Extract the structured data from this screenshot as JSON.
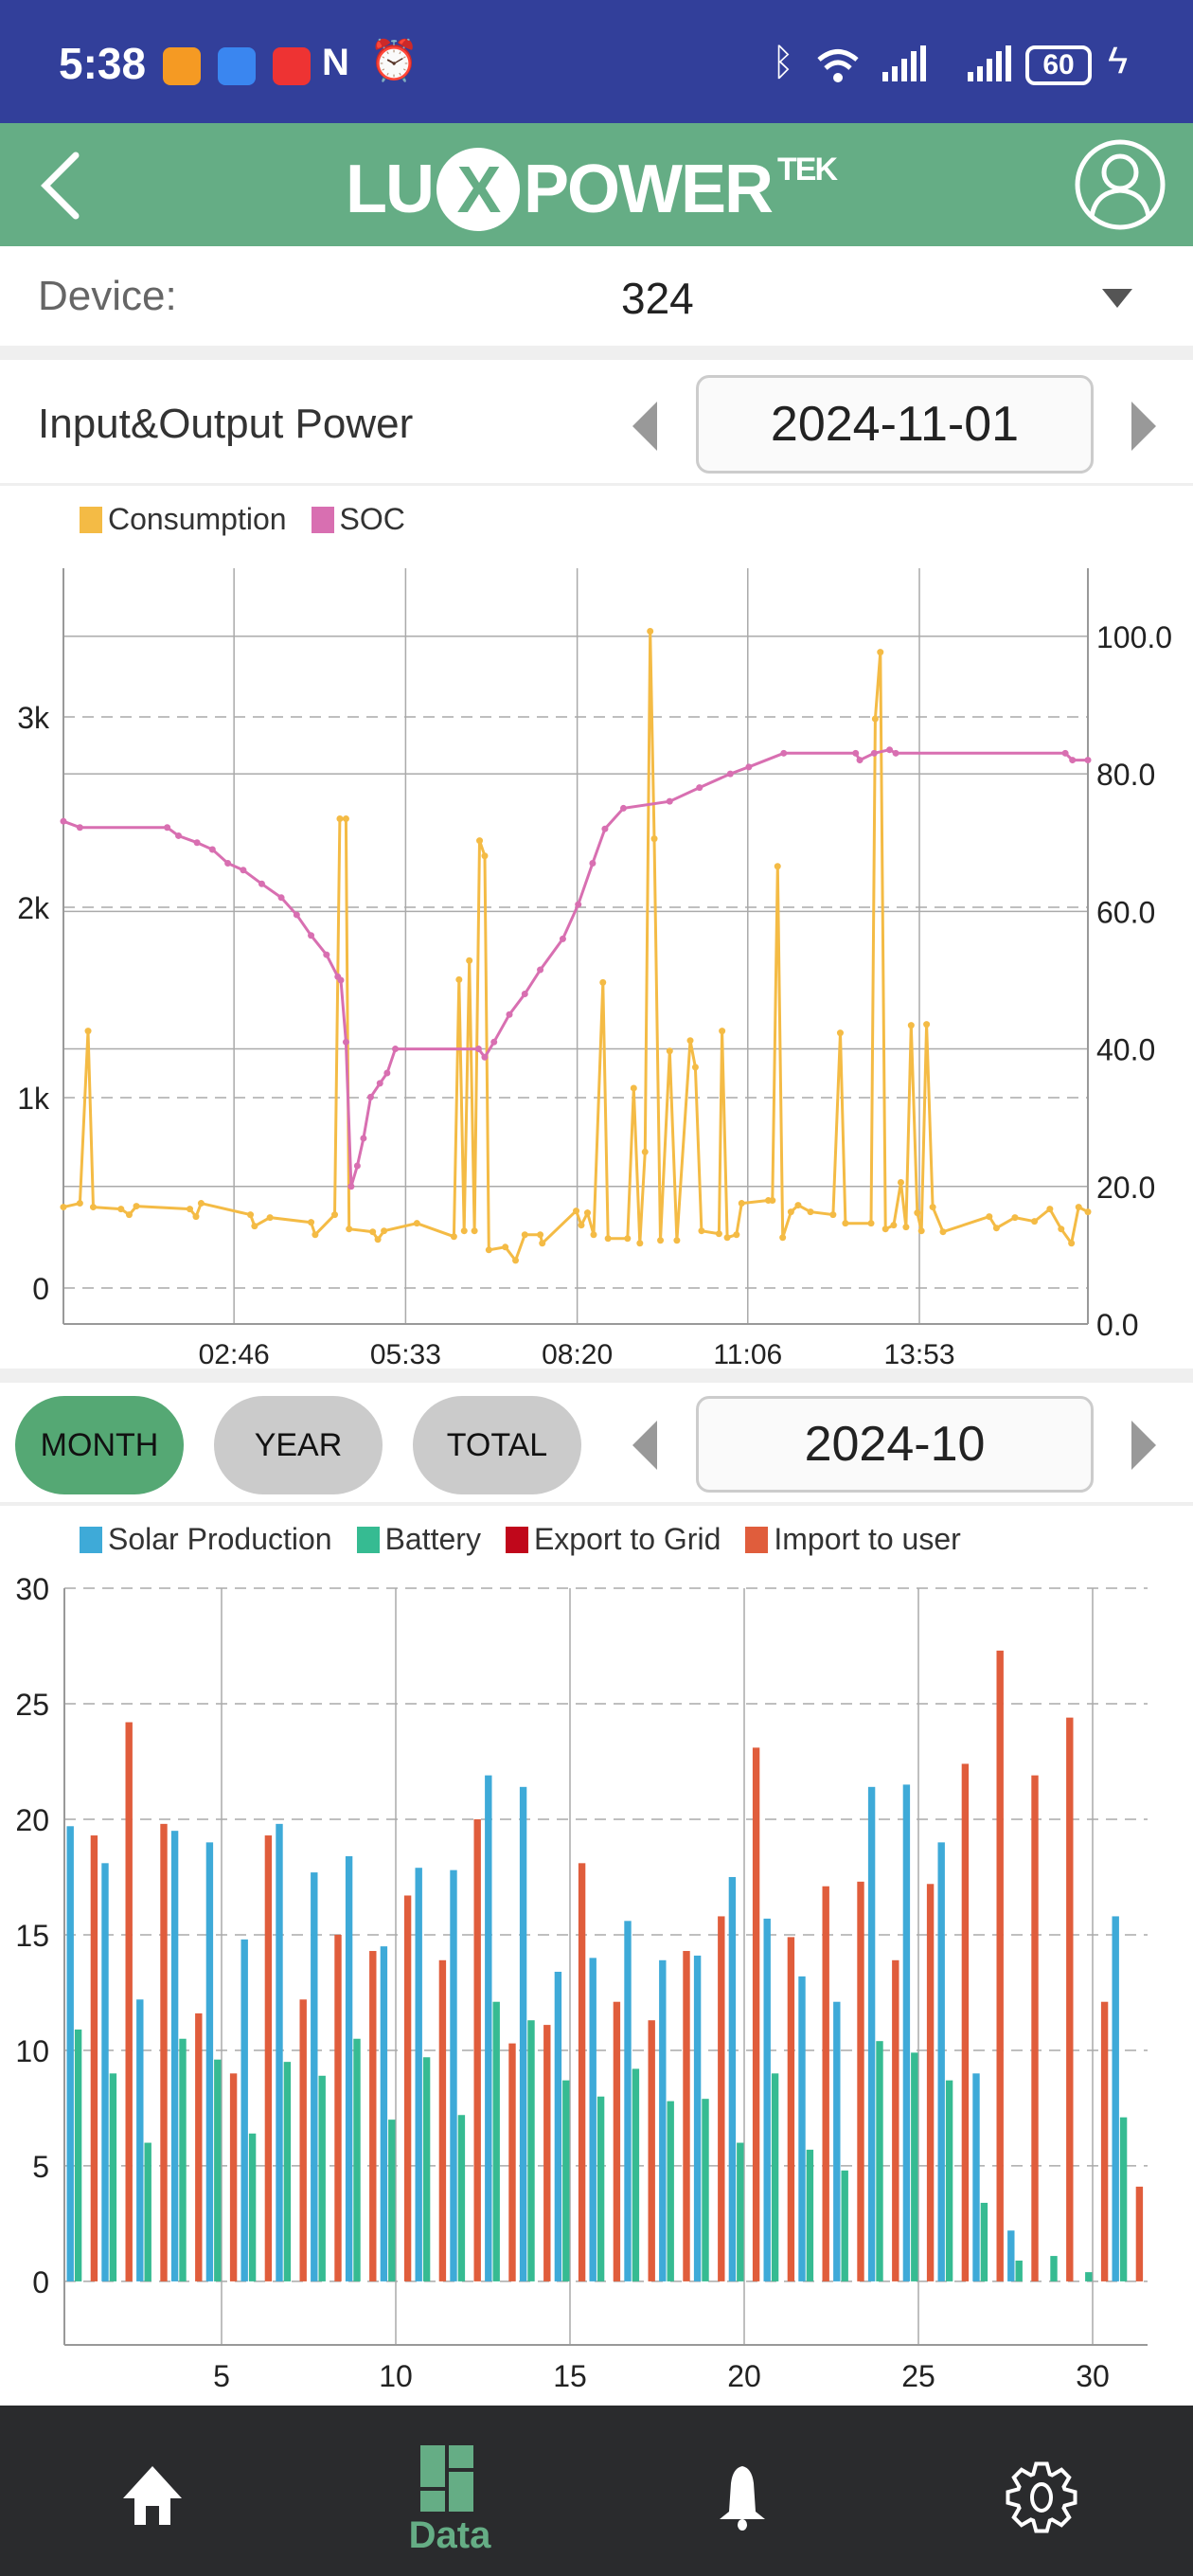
{
  "status_bar": {
    "time": "5:38",
    "battery": "60"
  },
  "header": {
    "logo_main": "LU",
    "logo_x": "X",
    "logo_power": "POWER",
    "logo_sup": "TEK"
  },
  "device": {
    "label": "Device:",
    "value": "324"
  },
  "power_section": {
    "title": "Input&Output Power",
    "date": "2024-11-01"
  },
  "energy_section": {
    "tabs": [
      "MONTH",
      "YEAR",
      "TOTAL"
    ],
    "active_tab": "MONTH",
    "date": "2024-10"
  },
  "nav": {
    "items": [
      {
        "icon": "home-icon"
      },
      {
        "icon": "data-icon",
        "label": "Data"
      },
      {
        "icon": "bell-icon"
      },
      {
        "icon": "gear-icon"
      }
    ],
    "active": "Data"
  },
  "colors": {
    "consumption": "#f4bb45",
    "soc": "#d86fb1",
    "solar": "#3eaad8",
    "battery": "#36bb92",
    "export": "#c0071b",
    "import": "#e05d3c",
    "green": "#65ad85"
  },
  "chart_data": [
    {
      "type": "line",
      "title": "Input&Output Power",
      "legend": [
        "Consumption",
        "SOC"
      ],
      "legend_position": "top-left",
      "x_unit": "minutes since 00:00",
      "x_range": [
        0,
        997
      ],
      "x_ticks": [
        {
          "t": 166,
          "label": "02:46"
        },
        {
          "t": 333,
          "label": "05:33"
        },
        {
          "t": 500,
          "label": "08:20"
        },
        {
          "t": 666,
          "label": "11:06"
        },
        {
          "t": 833,
          "label": "13:53"
        }
      ],
      "y_left": {
        "range": [
          -189,
          3781
        ],
        "ticks": [
          {
            "v": 0,
            "label": "0"
          },
          {
            "v": 1000,
            "label": "1k"
          },
          {
            "v": 2000,
            "label": "2k"
          },
          {
            "v": 3000,
            "label": "3k"
          }
        ]
      },
      "y_right": {
        "range": [
          0,
          109.9
        ],
        "ticks": [
          {
            "v": 0,
            "label": "0.0"
          },
          {
            "v": 20,
            "label": "20.0"
          },
          {
            "v": 40,
            "label": "40.0"
          },
          {
            "v": 60,
            "label": "60.0"
          },
          {
            "v": 80,
            "label": "80.0"
          },
          {
            "v": 100,
            "label": "100.0"
          }
        ]
      },
      "grid": true,
      "series": [
        {
          "name": "Consumption",
          "axis": "left",
          "points": [
            [
              0,
              425
            ],
            [
              16,
              445
            ],
            [
              24,
              1350
            ],
            [
              29,
              425
            ],
            [
              56,
              415
            ],
            [
              64,
              385
            ],
            [
              71,
              430
            ],
            [
              123,
              415
            ],
            [
              129,
              375
            ],
            [
              134,
              445
            ],
            [
              182,
              385
            ],
            [
              186,
              325
            ],
            [
              201,
              370
            ],
            [
              241,
              345
            ],
            [
              245,
              280
            ],
            [
              264,
              385
            ],
            [
              269,
              2465
            ],
            [
              275,
              2465
            ],
            [
              278,
              310
            ],
            [
              301,
              295
            ],
            [
              306,
              255
            ],
            [
              312,
              300
            ],
            [
              344,
              340
            ],
            [
              380,
              270
            ],
            [
              385,
              1620
            ],
            [
              390,
              300
            ],
            [
              395,
              1720
            ],
            [
              400,
              300
            ],
            [
              405,
              2350
            ],
            [
              410,
              2270
            ],
            [
              414,
              200
            ],
            [
              430,
              215
            ],
            [
              440,
              145
            ],
            [
              449,
              280
            ],
            [
              464,
              280
            ],
            [
              466,
              235
            ],
            [
              499,
              405
            ],
            [
              504,
              330
            ],
            [
              510,
              395
            ],
            [
              516,
              280
            ],
            [
              525,
              1605
            ],
            [
              530,
              260
            ],
            [
              549,
              260
            ],
            [
              555,
              1050
            ],
            [
              561,
              235
            ],
            [
              566,
              715
            ],
            [
              571,
              3450
            ],
            [
              575,
              2360
            ],
            [
              581,
              250
            ],
            [
              590,
              1245
            ],
            [
              597,
              250
            ],
            [
              610,
              1300
            ],
            [
              615,
              1160
            ],
            [
              621,
              300
            ],
            [
              638,
              285
            ],
            [
              641,
              1350
            ],
            [
              646,
              265
            ],
            [
              655,
              280
            ],
            [
              660,
              445
            ],
            [
              686,
              460
            ],
            [
              690,
              460
            ],
            [
              695,
              2215
            ],
            [
              700,
              265
            ],
            [
              708,
              400
            ],
            [
              715,
              435
            ],
            [
              727,
              400
            ],
            [
              749,
              385
            ],
            [
              756,
              1340
            ],
            [
              761,
              340
            ],
            [
              786,
              340
            ],
            [
              790,
              2990
            ],
            [
              795,
              3340
            ],
            [
              800,
              310
            ],
            [
              808,
              330
            ],
            [
              815,
              555
            ],
            [
              820,
              320
            ],
            [
              825,
              1380
            ],
            [
              831,
              395
            ],
            [
              835,
              300
            ],
            [
              840,
              1385
            ],
            [
              846,
              425
            ],
            [
              856,
              295
            ],
            [
              901,
              375
            ],
            [
              908,
              315
            ],
            [
              926,
              370
            ],
            [
              945,
              350
            ],
            [
              960,
              415
            ],
            [
              971,
              310
            ],
            [
              981,
              235
            ],
            [
              988,
              425
            ],
            [
              997,
              400
            ]
          ]
        },
        {
          "name": "SOC",
          "axis": "right",
          "points": [
            [
              0,
              73.1
            ],
            [
              16,
              72.2
            ],
            [
              101,
              72.2
            ],
            [
              112,
              71
            ],
            [
              130,
              70
            ],
            [
              145,
              69
            ],
            [
              160,
              67
            ],
            [
              175,
              66
            ],
            [
              193,
              64
            ],
            [
              212,
              62
            ],
            [
              227,
              59.5
            ],
            [
              241,
              56.5
            ],
            [
              256,
              53.7
            ],
            [
              267,
              50.5
            ],
            [
              270,
              50
            ],
            [
              275,
              41
            ],
            [
              280,
              20
            ],
            [
              286,
              23
            ],
            [
              292,
              27
            ],
            [
              299,
              33
            ],
            [
              308,
              35
            ],
            [
              315,
              36.5
            ],
            [
              323,
              40
            ],
            [
              404,
              40
            ],
            [
              410,
              38.8
            ],
            [
              419,
              41
            ],
            [
              434,
              45
            ],
            [
              449,
              48
            ],
            [
              464,
              51.5
            ],
            [
              486,
              56
            ],
            [
              501,
              61
            ],
            [
              515,
              67
            ],
            [
              527,
              72
            ],
            [
              545,
              75
            ],
            [
              590,
              76
            ],
            [
              619,
              78
            ],
            [
              649,
              80
            ],
            [
              667,
              81
            ],
            [
              701,
              83
            ],
            [
              771,
              83
            ],
            [
              775,
              82
            ],
            [
              789,
              83
            ],
            [
              804,
              83.5
            ],
            [
              810,
              83
            ],
            [
              975,
              83
            ],
            [
              982,
              82
            ],
            [
              997,
              82
            ]
          ]
        }
      ]
    },
    {
      "type": "bar",
      "legend": [
        "Solar Production",
        "Battery",
        "Export to Grid",
        "Import to user"
      ],
      "legend_position": "top-left",
      "xlabel": "",
      "ylabel": "",
      "x_ticks": [
        5,
        10,
        15,
        20,
        25,
        30
      ],
      "ylim": [
        -2.75,
        30
      ],
      "y_ticks": [
        0,
        5,
        10,
        15,
        20,
        25,
        30
      ],
      "categories": [
        1,
        2,
        3,
        4,
        5,
        6,
        7,
        8,
        9,
        10,
        11,
        12,
        13,
        14,
        15,
        16,
        17,
        18,
        19,
        20,
        21,
        22,
        23,
        24,
        25,
        26,
        27,
        28,
        29,
        30,
        31
      ],
      "series": [
        {
          "name": "Solar Production",
          "values": [
            19.7,
            18.1,
            12.2,
            19.5,
            19.0,
            14.8,
            19.8,
            17.7,
            18.4,
            14.5,
            17.9,
            17.8,
            21.9,
            21.4,
            13.4,
            14.0,
            15.6,
            13.9,
            14.1,
            17.5,
            15.7,
            13.2,
            12.1,
            21.4,
            21.5,
            19.0,
            9.0,
            2.2,
            0,
            0,
            15.8
          ]
        },
        {
          "name": "Battery",
          "values": [
            10.9,
            9.0,
            6.0,
            10.5,
            9.6,
            6.4,
            9.5,
            8.9,
            10.5,
            7.0,
            9.7,
            7.2,
            12.1,
            11.3,
            8.7,
            8.0,
            9.2,
            7.8,
            7.9,
            6.0,
            9.0,
            5.7,
            4.8,
            10.4,
            9.9,
            8.7,
            3.4,
            0.9,
            1.1,
            0.4,
            7.1
          ]
        },
        {
          "name": "Export to Grid",
          "values": [
            0,
            0,
            0,
            0,
            0,
            0,
            0,
            0,
            0,
            0,
            0,
            0,
            0,
            0,
            0,
            0,
            0,
            0,
            0,
            0,
            0,
            0,
            0,
            0,
            0,
            0,
            0,
            0,
            0,
            0,
            0
          ]
        },
        {
          "name": "Import to user",
          "values": [
            19.3,
            24.2,
            19.8,
            11.6,
            9.0,
            19.3,
            12.2,
            15.0,
            14.3,
            16.7,
            13.9,
            20.0,
            10.3,
            11.1,
            18.1,
            12.1,
            11.3,
            14.3,
            15.8,
            23.1,
            14.9,
            17.1,
            17.3,
            13.9,
            17.2,
            22.4,
            27.3,
            21.9,
            24.4,
            12.1,
            4.1
          ]
        }
      ]
    }
  ]
}
